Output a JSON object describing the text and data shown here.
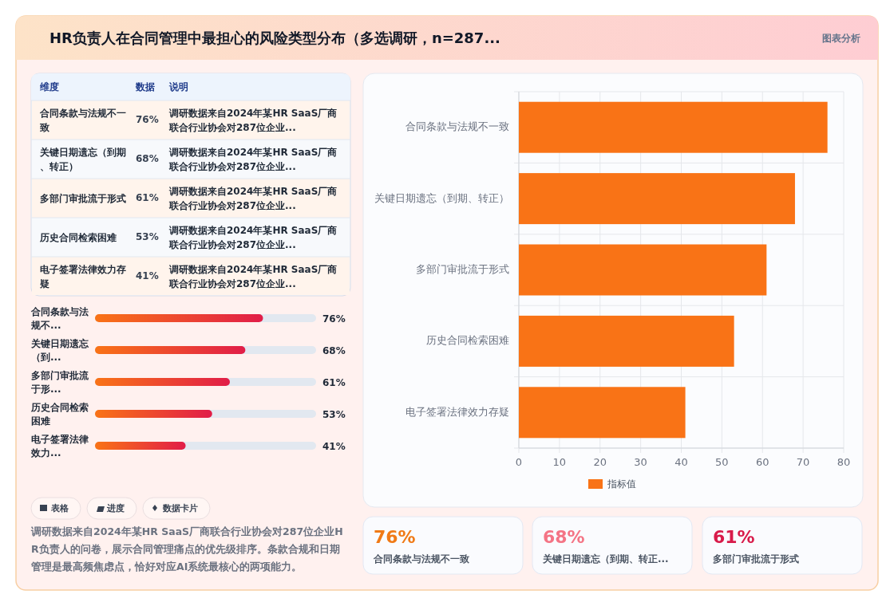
{
  "chart_data": [
    {
      "type": "other",
      "title": "HR负责人在合同管理中最担心的风险类型分布（多选调研，n=287...",
      "annotations": [
        "图表分析",
        "维度",
        "数据",
        "说明",
        "合同条款与法规不一致",
        "76%",
        "调研数据来自2024年某HR SaaS厂商联合行业协会对287位企业...",
        "关键日期遗忘（到期、转正）",
        "68%",
        "调研数据来自2024年某HR SaaS厂商联合行业协会对287位企业...",
        "多部门审批流于形式",
        "61%",
        "调研数据来自2024年某HR SaaS厂商联合行业协会对287位企业...",
        "历史合同检索困难",
        "53%",
        "调研数据来自2024年某HR SaaS厂商联合行业协会对287位企业...",
        "电子签署法律效力存疑",
        "41%",
        "调研数据来自2024年某HR SaaS厂商联合行业协会对287位企业..."
      ]
    },
    {
      "type": "bar",
      "orientation": "horizontal",
      "categories": [
        "合同条款与法规不...",
        "关键日期遗忘（到...",
        "多部门审批流于形...",
        "历史合同检索困难",
        "电子签署法律效力..."
      ],
      "values": [
        76,
        68,
        61,
        53,
        41
      ],
      "color": "#e11d48",
      "xlim": [
        0,
        100
      ],
      "value_labels": [
        "76%",
        "68%",
        "61%",
        "53%",
        "41%"
      ]
    },
    {
      "type": "other",
      "annotations": [
        "表格",
        "进度",
        "数据卡片",
        "调研数据来自2024年某HR SaaS厂商联合行业协会对287位企业HR负责人的问卷，展示合同管理痛点的优先级排序。条款合规和日期管理是最高频焦虑点，恰好对应AI系统最核心的两项能力。"
      ]
    },
    {
      "type": "bar",
      "orientation": "horizontal",
      "categories": [
        "合同条款与法规不一致",
        "关键日期遗忘（到期、转正）",
        "多部门审批流于形式",
        "历史合同检索困难",
        "电子签署法律效力存疑"
      ],
      "series": [
        {
          "name": "指标值",
          "color": "#f97316",
          "values": [
            76,
            68,
            61,
            53,
            41
          ]
        }
      ],
      "xlim": [
        0,
        80
      ],
      "xticks": [
        0,
        10,
        20,
        30,
        40,
        50,
        60,
        70,
        80
      ],
      "grid": true,
      "legend": "bottom"
    },
    {
      "type": "other",
      "annotations": [
        "76%",
        "合同条款与法规不一致",
        "68%",
        "关键日期遗忘（到期、转正...",
        "61%",
        "多部门审批流于形式"
      ]
    }
  ]
}
